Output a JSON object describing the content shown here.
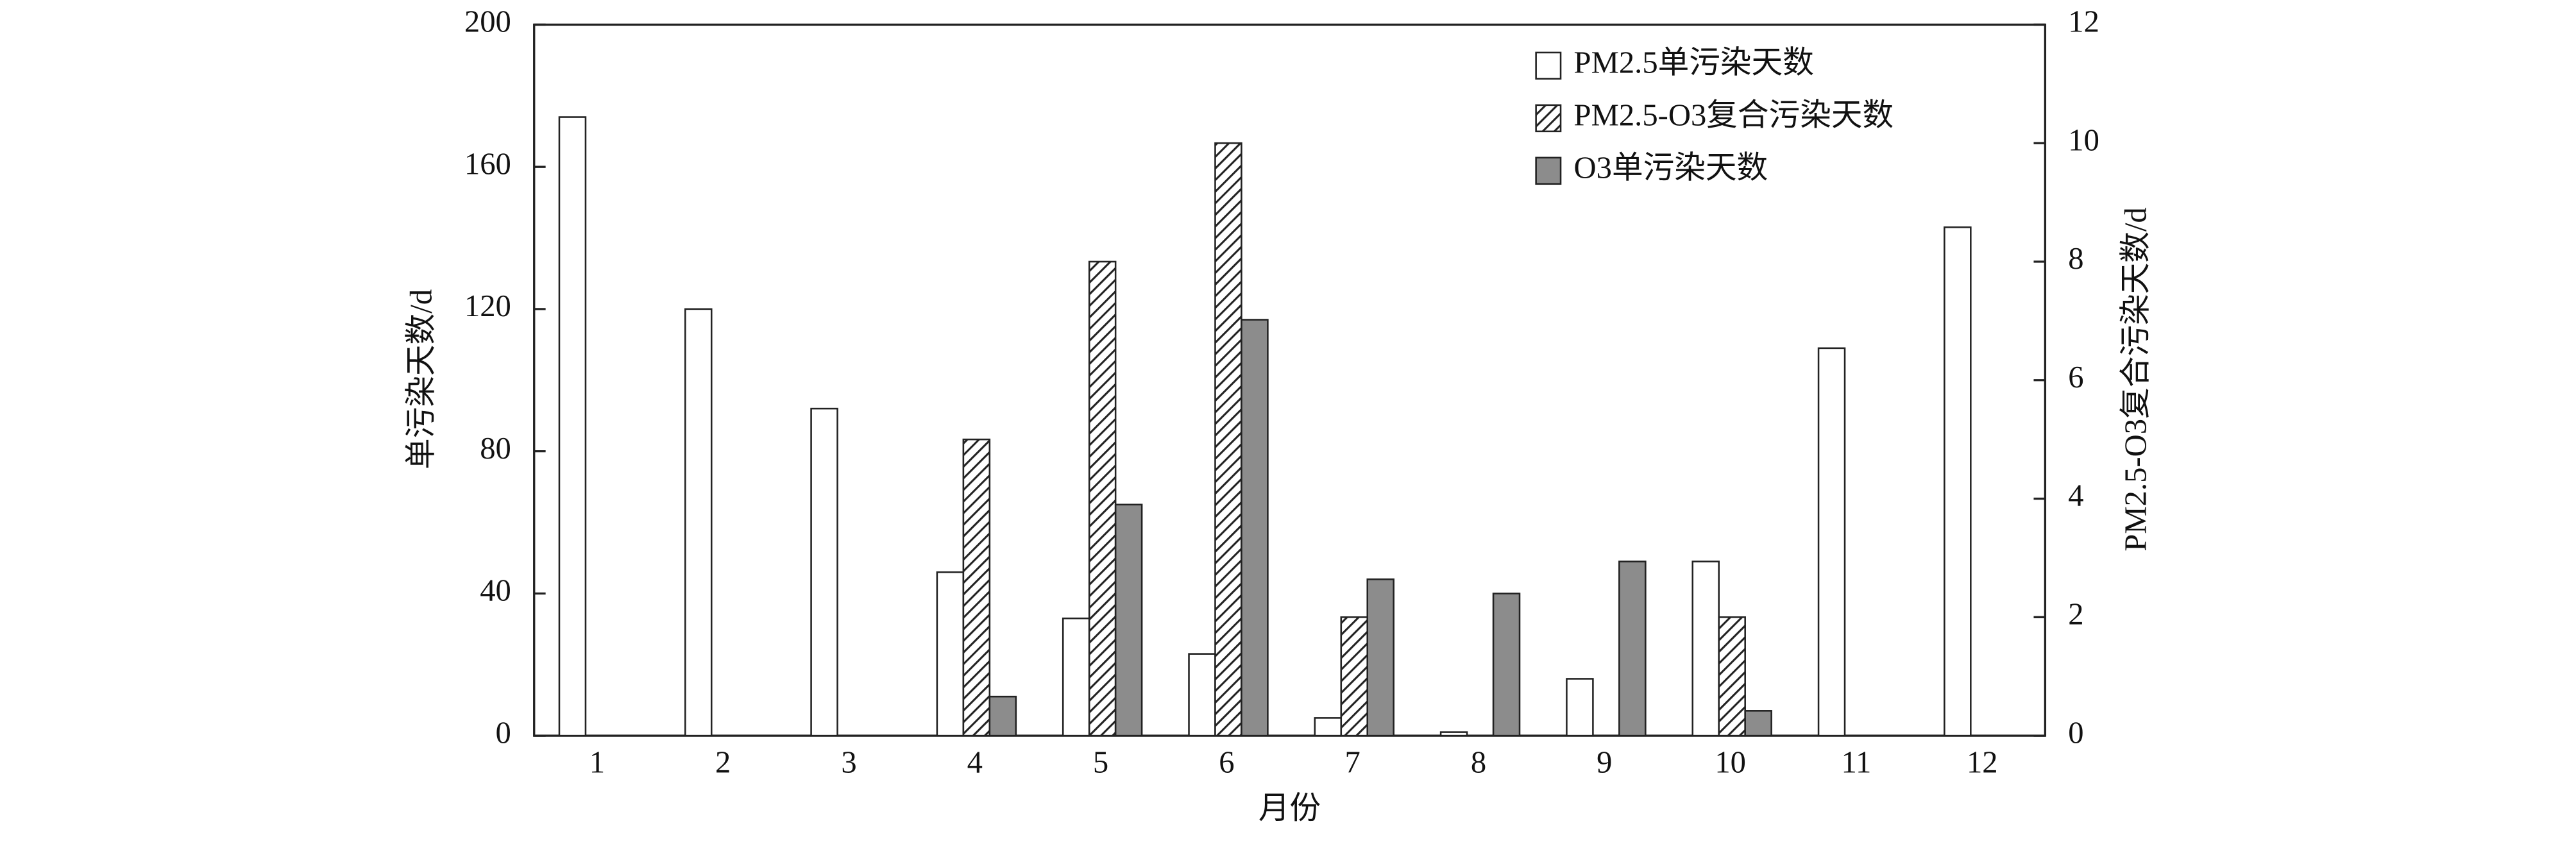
{
  "chart_data": {
    "type": "bar",
    "x_label": "月份",
    "y_label": "单污染天数/d",
    "y2_label": "PM2.5-O3复合污染天数/d",
    "categories": [
      "1",
      "2",
      "3",
      "4",
      "5",
      "6",
      "7",
      "8",
      "9",
      "10",
      "11",
      "12"
    ],
    "series": [
      {
        "name": "PM2.5单污染天数",
        "color": "#ffffff",
        "values": [
          174,
          120,
          92,
          46,
          33,
          23,
          5,
          1,
          16,
          49,
          109,
          143
        ]
      },
      {
        "name": "PM2.5-O3复合污染天数",
        "color": "#ffffff",
        "hatch": true,
        "axis": "y2",
        "values": [
          0,
          0,
          0,
          5,
          8,
          10,
          2,
          0,
          0,
          2,
          0,
          0
        ]
      },
      {
        "name": "O3单污染天数",
        "color": "#8c8c8c",
        "values": [
          0,
          0,
          0,
          11,
          65,
          117,
          44,
          40,
          49,
          7,
          0,
          0
        ]
      }
    ],
    "ylim": [
      0,
      200
    ],
    "yticks": [
      0,
      40,
      80,
      120,
      160,
      200
    ],
    "y2lim": [
      0,
      12
    ],
    "y2ticks": [
      0,
      2,
      4,
      6,
      8,
      10,
      12
    ],
    "legend": "upper right"
  }
}
